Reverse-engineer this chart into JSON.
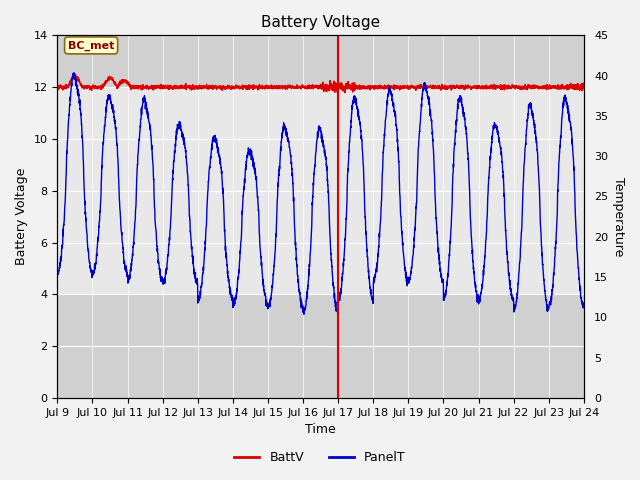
{
  "title": "Battery Voltage",
  "xlabel": "Time",
  "ylabel_left": "Battery Voltage",
  "ylabel_right": "Temperature",
  "xlim": [
    0,
    15
  ],
  "ylim_left": [
    0,
    14
  ],
  "ylim_right": [
    0,
    45
  ],
  "yticks_left": [
    0,
    2,
    4,
    6,
    8,
    10,
    12,
    14
  ],
  "yticks_right": [
    0,
    5,
    10,
    15,
    20,
    25,
    30,
    35,
    40,
    45
  ],
  "xtick_labels": [
    "Jul 9",
    "Jul 10",
    "Jul 11",
    "Jul 12",
    "Jul 13",
    "Jul 14",
    "Jul 15",
    "Jul 16",
    "Jul 17",
    "Jul 18",
    "Jul 19",
    "Jul 20",
    "Jul 21",
    "Jul 22",
    "Jul 23",
    "Jul 24"
  ],
  "annotation_text": "BC_met",
  "vline_x": 8,
  "batt_color": "#dd0000",
  "panel_color": "#0000cc",
  "fig_bg_color": "#f2f2f2",
  "plot_bg_color": "#e8e8e8",
  "band_dark_color": "#d0d0d0",
  "grid_color": "#ffffff",
  "legend_items": [
    "BattV",
    "PanelT"
  ],
  "title_fontsize": 11,
  "axis_label_fontsize": 9,
  "tick_fontsize": 8
}
